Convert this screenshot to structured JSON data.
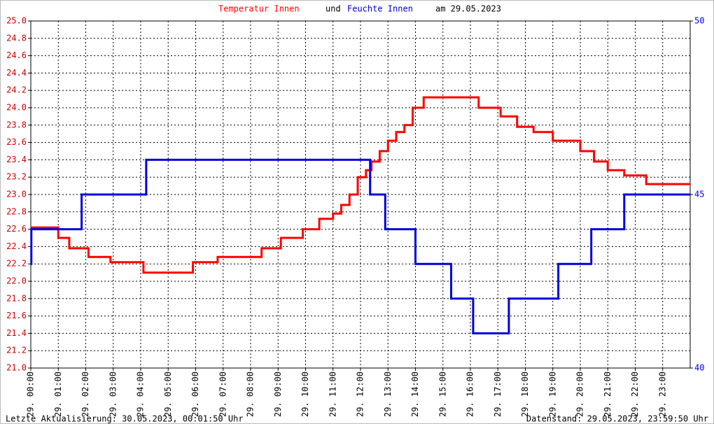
{
  "chart_data": {
    "type": "line",
    "title": [
      "Temperatur Innen",
      "und",
      "Feuchte Innen",
      "am 29.05.2023"
    ],
    "footer_left": "Letzte Aktualisierung: 30.05.2023, 00:01:50 Uhr",
    "footer_right": "Datenstand: 29.05.2023, 23:59:50 Uhr",
    "xlim": [
      0,
      24
    ],
    "xticks": [
      {
        "value": 0,
        "label": "29. 00:00"
      },
      {
        "value": 1,
        "label": "29. 01:00"
      },
      {
        "value": 2,
        "label": "29. 02:00"
      },
      {
        "value": 3,
        "label": "29. 03:00"
      },
      {
        "value": 4,
        "label": "29. 04:00"
      },
      {
        "value": 5,
        "label": "29. 05:00"
      },
      {
        "value": 6,
        "label": "29. 06:00"
      },
      {
        "value": 7,
        "label": "29. 07:00"
      },
      {
        "value": 8,
        "label": "29. 08:00"
      },
      {
        "value": 9,
        "label": "29. 09:00"
      },
      {
        "value": 10,
        "label": "29. 10:00"
      },
      {
        "value": 11,
        "label": "29. 11:00"
      },
      {
        "value": 12,
        "label": "29. 12:00"
      },
      {
        "value": 13,
        "label": "29. 13:00"
      },
      {
        "value": 14,
        "label": "29. 14:00"
      },
      {
        "value": 15,
        "label": "29. 15:00"
      },
      {
        "value": 16,
        "label": "29. 16:00"
      },
      {
        "value": 17,
        "label": "29. 17:00"
      },
      {
        "value": 18,
        "label": "29. 18:00"
      },
      {
        "value": 19,
        "label": "29. 19:00"
      },
      {
        "value": 20,
        "label": "29. 20:00"
      },
      {
        "value": 21,
        "label": "29. 21:00"
      },
      {
        "value": 22,
        "label": "29. 22:00"
      },
      {
        "value": 23,
        "label": "29. 23:00"
      }
    ],
    "ylim": [
      21.0,
      25.0
    ],
    "yticks": [
      {
        "value": 21,
        "label": "21.0"
      },
      21.2,
      21.4,
      21.6,
      21.8,
      {
        "value": 22,
        "label": "22.0"
      },
      22.2,
      22.4,
      22.6,
      22.8,
      {
        "value": 23,
        "label": "23.0"
      },
      23.2,
      23.4,
      23.6,
      23.8,
      {
        "value": 24,
        "label": "24.0"
      },
      24.2,
      24.4,
      24.6,
      24.8,
      {
        "value": 25,
        "label": "25.0"
      }
    ],
    "y2lim": [
      40,
      50
    ],
    "y2ticks": [
      40,
      45,
      50
    ],
    "grid": true,
    "series": [
      {
        "color": "#ff0000",
        "x": [
          0,
          1.0,
          1.0,
          1.4,
          1.4,
          2.1,
          2.1,
          2.9,
          2.9,
          4.1,
          4.1,
          5.9,
          5.9,
          6.8,
          6.8,
          8.4,
          8.4,
          9.1,
          9.1,
          9.9,
          9.9,
          10.5,
          10.5,
          11.0,
          11.0,
          11.3,
          11.3,
          11.6,
          11.6,
          11.9,
          11.9,
          12.2,
          12.2,
          12.4,
          12.4,
          12.7,
          12.7,
          13.0,
          13.0,
          13.3,
          13.3,
          13.6,
          13.6,
          13.9,
          13.9,
          14.3,
          14.3,
          16.3,
          16.3,
          17.1,
          17.1,
          17.7,
          17.7,
          18.3,
          18.3,
          19.0,
          19.0,
          20.0,
          20.0,
          20.5,
          20.5,
          21.0,
          21.0,
          21.6,
          21.6,
          22.4,
          22.4,
          24
        ],
        "values": [
          22.62,
          22.62,
          22.5,
          22.5,
          22.38,
          22.38,
          22.28,
          22.28,
          22.22,
          22.22,
          22.1,
          22.1,
          22.22,
          22.22,
          22.28,
          22.28,
          22.38,
          22.38,
          22.5,
          22.5,
          22.6,
          22.6,
          22.72,
          22.72,
          22.78,
          22.78,
          22.88,
          22.88,
          23.0,
          23.0,
          23.2,
          23.2,
          23.28,
          23.28,
          23.38,
          23.38,
          23.5,
          23.5,
          23.62,
          23.62,
          23.72,
          23.72,
          23.8,
          23.8,
          24.0,
          24.0,
          24.12,
          24.12,
          24.0,
          24.0,
          23.9,
          23.9,
          23.78,
          23.78,
          23.72,
          23.72,
          23.62,
          23.62,
          23.5,
          23.5,
          23.38,
          23.38,
          23.28,
          23.28,
          23.22,
          23.22,
          23.12,
          23.12
        ]
      },
      {
        "color": "#0000dd",
        "axis": "y2",
        "x": [
          0,
          0.02,
          0.02,
          1.85,
          1.85,
          4.2,
          4.2,
          12.35,
          12.35,
          12.9,
          12.9,
          14.0,
          14.0,
          15.3,
          15.3,
          16.1,
          16.1,
          17.4,
          17.4,
          19.2,
          19.2,
          20.4,
          20.4,
          21.6,
          21.6,
          24
        ],
        "values": [
          43,
          43,
          44,
          44,
          45,
          45,
          46,
          46,
          45,
          45,
          44,
          44,
          43,
          43,
          42,
          42,
          41,
          41,
          42,
          42,
          43,
          43,
          44,
          44,
          45,
          45
        ]
      }
    ]
  }
}
